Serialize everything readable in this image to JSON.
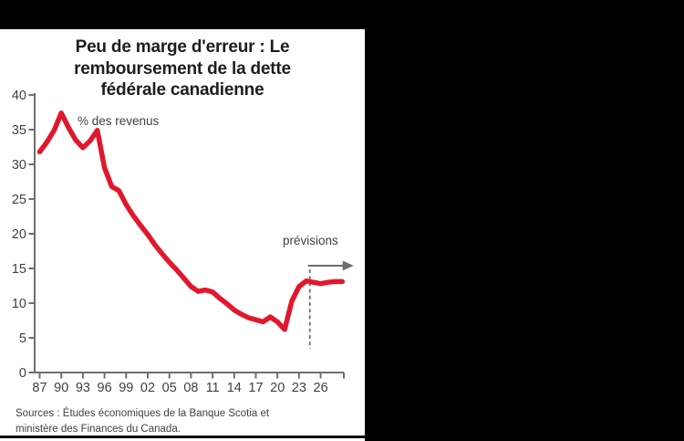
{
  "style": {
    "background_color": "#000000",
    "panel_color": "#ffffff",
    "line_color": "#e1182d",
    "axis_color": "#6d6e71",
    "tick_label_color": "#414042",
    "title_color": "#1d1d1f",
    "forecast_color": "#6d6e71"
  },
  "chart_data": {
    "type": "line",
    "title": "Peu de marge d'erreur : Le remboursement de la dette fédérale canadienne",
    "title_lines": [
      "Peu de marge d'erreur : Le",
      "remboursement de la dette",
      "fédérale canadienne"
    ],
    "unit_label": "% des revenus",
    "annotation_label": "prévisions",
    "ylim": [
      0,
      40
    ],
    "y_ticks": [
      0,
      5,
      10,
      15,
      20,
      25,
      30,
      35,
      40
    ],
    "x_ticks": [
      [
        1987,
        "87"
      ],
      [
        1990,
        "90"
      ],
      [
        1993,
        "93"
      ],
      [
        1996,
        "96"
      ],
      [
        1999,
        "99"
      ],
      [
        2002,
        "02"
      ],
      [
        2005,
        "05"
      ],
      [
        2008,
        "08"
      ],
      [
        2011,
        "11"
      ],
      [
        2014,
        "14"
      ],
      [
        2017,
        "17"
      ],
      [
        2020,
        "20"
      ],
      [
        2023,
        "23"
      ],
      [
        2026,
        "26"
      ]
    ],
    "grid": false,
    "legend": "none",
    "forecast_divider_year": 2024.5,
    "series": [
      {
        "name": "Remboursement de la dette fédérale canadienne (% des revenus)",
        "color": "#e1182d",
        "points": [
          [
            1987,
            31.8
          ],
          [
            1988,
            33.2
          ],
          [
            1989,
            34.9
          ],
          [
            1990,
            37.4
          ],
          [
            1991,
            35.3
          ],
          [
            1992,
            33.5
          ],
          [
            1993,
            32.4
          ],
          [
            1994,
            33.4
          ],
          [
            1995,
            34.9
          ],
          [
            1996,
            29.5
          ],
          [
            1997,
            26.8
          ],
          [
            1998,
            26.2
          ],
          [
            1999,
            24.2
          ],
          [
            2000,
            22.6
          ],
          [
            2001,
            21.2
          ],
          [
            2002,
            19.9
          ],
          [
            2003,
            18.4
          ],
          [
            2004,
            17.1
          ],
          [
            2005,
            15.9
          ],
          [
            2006,
            14.8
          ],
          [
            2007,
            13.6
          ],
          [
            2008,
            12.4
          ],
          [
            2009,
            11.7
          ],
          [
            2010,
            11.9
          ],
          [
            2011,
            11.6
          ],
          [
            2012,
            10.7
          ],
          [
            2013,
            9.9
          ],
          [
            2014,
            9.0
          ],
          [
            2015,
            8.4
          ],
          [
            2016,
            7.9
          ],
          [
            2017,
            7.6
          ],
          [
            2018,
            7.3
          ],
          [
            2019,
            8.0
          ],
          [
            2020,
            7.3
          ],
          [
            2021,
            6.2
          ],
          [
            2022,
            10.3
          ],
          [
            2023,
            12.4
          ],
          [
            2024,
            13.2
          ],
          [
            2025,
            13.0
          ],
          [
            2026,
            12.8
          ],
          [
            2027,
            13.0
          ],
          [
            2028,
            13.1
          ],
          [
            2029,
            13.1
          ]
        ]
      }
    ],
    "source_lines": [
      "Sources : Études économiques de la Banque Scotia et",
      "ministère des Finances du Canada."
    ]
  }
}
